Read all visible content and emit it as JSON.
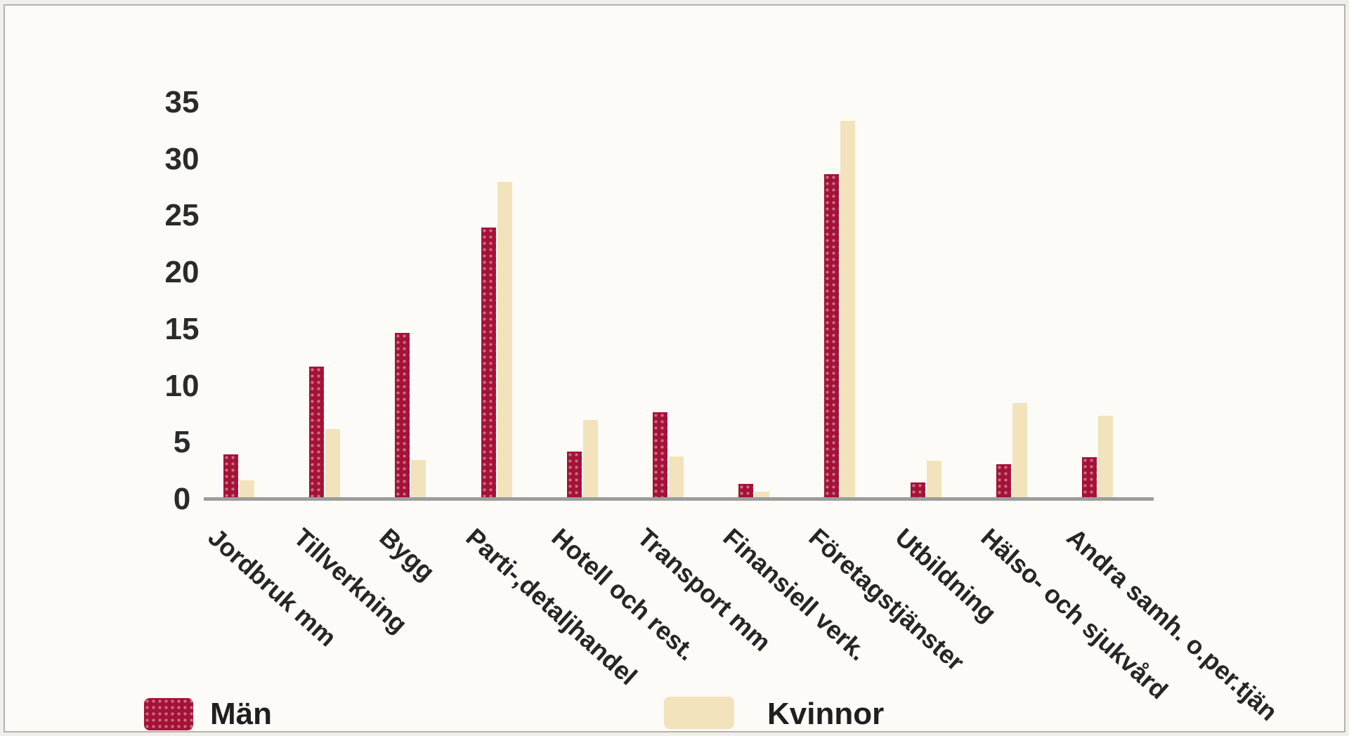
{
  "page": {
    "background_color": "#f1efec",
    "frame_border_color": "#b7b1ab",
    "frame_background_color": "#fcfbf8"
  },
  "chart_data": {
    "type": "bar",
    "title": "",
    "xlabel": "",
    "ylabel": "",
    "categories": [
      "Jordbruk mm",
      "Tillverkning",
      "Bygg",
      "Parti-,detaljhandel",
      "Hotell och rest.",
      "Transport mm",
      "Finansiell verk.",
      "Företagstjänster",
      "Utbildning",
      "Hälso- och sjukvård",
      "Andra samh. o.per.tjän"
    ],
    "series": [
      {
        "name": "Män",
        "color": "#a51237",
        "pattern": "dots",
        "values": [
          3.8,
          11.5,
          14.5,
          23.8,
          4.0,
          7.5,
          1.2,
          28.5,
          1.3,
          2.9,
          3.5
        ]
      },
      {
        "name": "Kvinnor",
        "color": "#f2e3bc",
        "pattern": "solid",
        "values": [
          1.5,
          6.0,
          3.3,
          27.8,
          6.8,
          3.6,
          0.5,
          33.2,
          3.2,
          8.3,
          7.2
        ]
      }
    ],
    "ylim": [
      0,
      35
    ],
    "yticks": [
      0,
      5,
      10,
      15,
      20,
      25,
      30,
      35
    ],
    "grid": false,
    "legend_position": "bottom",
    "x_tick_rotation_deg": 42,
    "axis_line_color": "#9c9c9c",
    "tick_label_color": "#2a2a2a"
  }
}
